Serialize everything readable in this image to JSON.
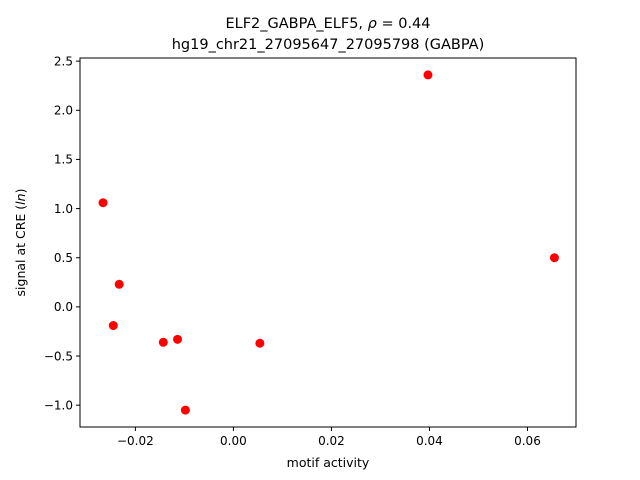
{
  "chart_data": {
    "type": "scatter",
    "title_line1_prefix": "ELF2_GABPA_ELF5, ",
    "title_rho_symbol": "ρ",
    "title_rho_value": " = 0.44",
    "title_line2": "hg19_chr21_27095647_27095798 (GABPA)",
    "xlabel": "motif activity",
    "ylabel_prefix": "signal at CRE (",
    "ylabel_italic": "ln",
    "ylabel_suffix": ")",
    "xlim": [
      -0.0313,
      0.0699
    ],
    "ylim": [
      -1.222,
      2.532
    ],
    "xticks": [
      {
        "value": -0.02,
        "label": "−0.02"
      },
      {
        "value": 0.0,
        "label": "0.00"
      },
      {
        "value": 0.02,
        "label": "0.02"
      },
      {
        "value": 0.04,
        "label": "0.04"
      },
      {
        "value": 0.06,
        "label": "0.06"
      }
    ],
    "yticks": [
      {
        "value": -1.0,
        "label": "−1.0"
      },
      {
        "value": -0.5,
        "label": "−0.5"
      },
      {
        "value": 0.0,
        "label": "0.0"
      },
      {
        "value": 0.5,
        "label": "0.5"
      },
      {
        "value": 1.0,
        "label": "1.0"
      },
      {
        "value": 1.5,
        "label": "1.5"
      },
      {
        "value": 2.0,
        "label": "2.0"
      },
      {
        "value": 2.5,
        "label": "2.5"
      }
    ],
    "point_color": "#ff0000",
    "points": [
      {
        "x": -0.0266,
        "y": 1.06
      },
      {
        "x": -0.0233,
        "y": 0.23
      },
      {
        "x": -0.0245,
        "y": -0.19
      },
      {
        "x": -0.0143,
        "y": -0.36
      },
      {
        "x": -0.0114,
        "y": -0.33
      },
      {
        "x": -0.0098,
        "y": -1.05
      },
      {
        "x": 0.0054,
        "y": -0.37
      },
      {
        "x": 0.0397,
        "y": 2.36
      },
      {
        "x": 0.0655,
        "y": 0.5
      }
    ]
  }
}
